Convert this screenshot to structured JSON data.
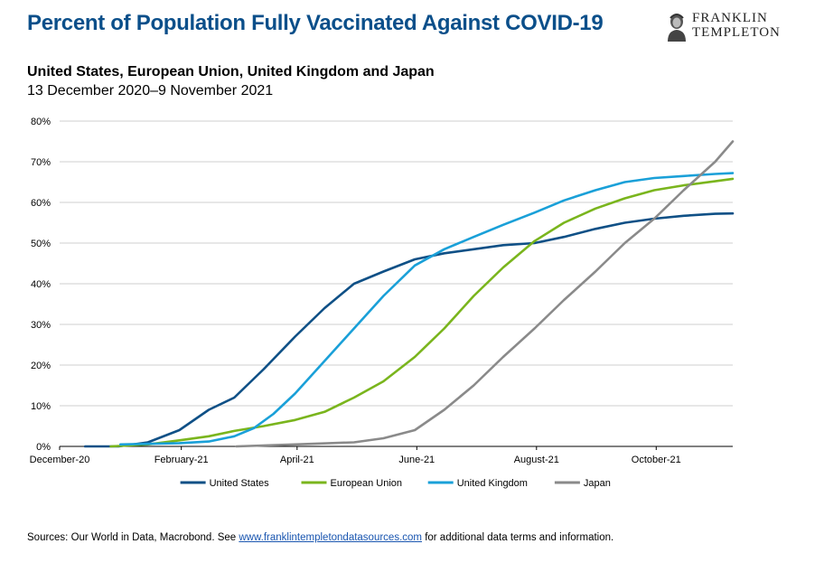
{
  "header": {
    "title": "Percent of Population Fully Vaccinated Against COVID-19",
    "subtitle": "United States, European Union, United Kingdom and Japan",
    "date_range": "13 December 2020–9 November 2021"
  },
  "logo": {
    "line1": "FRANKLIN",
    "line2": "TEMPLETON",
    "icon": "franklin-portrait-icon"
  },
  "footer": {
    "prefix": "Sources: Our World in Data, Macrobond. See ",
    "link": "www.franklintempletondatasources.com",
    "suffix": " for additional data terms and information."
  },
  "chart_data": {
    "type": "line",
    "x_unit": "date",
    "xlim": [
      "2020-12-01",
      "2021-11-09"
    ],
    "ylim": [
      0,
      80
    ],
    "y_ticks": [
      "0%",
      "10%",
      "20%",
      "30%",
      "40%",
      "50%",
      "60%",
      "70%",
      "80%"
    ],
    "x_ticks": [
      {
        "date": "2020-12-01",
        "label": "December-20"
      },
      {
        "date": "2021-02-01",
        "label": "February-21"
      },
      {
        "date": "2021-04-01",
        "label": "April-21"
      },
      {
        "date": "2021-06-01",
        "label": "June-21"
      },
      {
        "date": "2021-08-01",
        "label": "August-21"
      },
      {
        "date": "2021-10-01",
        "label": "October-21"
      }
    ],
    "grid": true,
    "legend_position": "bottom",
    "series": [
      {
        "name": "United States",
        "color": "#0f5086",
        "points": [
          [
            "2020-12-14",
            0
          ],
          [
            "2020-12-31",
            0
          ],
          [
            "2021-01-15",
            1
          ],
          [
            "2021-01-31",
            4
          ],
          [
            "2021-02-15",
            9
          ],
          [
            "2021-02-28",
            12
          ],
          [
            "2021-03-15",
            19
          ],
          [
            "2021-03-31",
            27
          ],
          [
            "2021-04-15",
            34
          ],
          [
            "2021-04-30",
            40
          ],
          [
            "2021-05-15",
            43
          ],
          [
            "2021-05-31",
            46
          ],
          [
            "2021-06-15",
            47.5
          ],
          [
            "2021-06-30",
            48.5
          ],
          [
            "2021-07-15",
            49.5
          ],
          [
            "2021-07-31",
            50
          ],
          [
            "2021-08-15",
            51.5
          ],
          [
            "2021-08-31",
            53.5
          ],
          [
            "2021-09-15",
            55
          ],
          [
            "2021-09-30",
            56
          ],
          [
            "2021-10-15",
            56.7
          ],
          [
            "2021-10-31",
            57.2
          ],
          [
            "2021-11-09",
            57.3
          ]
        ]
      },
      {
        "name": "European Union",
        "color": "#7ab51d",
        "points": [
          [
            "2020-12-27",
            0
          ],
          [
            "2021-01-15",
            0.5
          ],
          [
            "2021-01-31",
            1.5
          ],
          [
            "2021-02-15",
            2.5
          ],
          [
            "2021-02-28",
            3.8
          ],
          [
            "2021-03-15",
            5
          ],
          [
            "2021-03-31",
            6.5
          ],
          [
            "2021-04-15",
            8.5
          ],
          [
            "2021-04-30",
            12
          ],
          [
            "2021-05-15",
            16
          ],
          [
            "2021-05-31",
            22
          ],
          [
            "2021-06-15",
            29
          ],
          [
            "2021-06-30",
            37
          ],
          [
            "2021-07-15",
            44
          ],
          [
            "2021-07-31",
            50.5
          ],
          [
            "2021-08-15",
            55
          ],
          [
            "2021-08-31",
            58.5
          ],
          [
            "2021-09-15",
            61
          ],
          [
            "2021-09-30",
            63
          ],
          [
            "2021-10-15",
            64.2
          ],
          [
            "2021-10-31",
            65.2
          ],
          [
            "2021-11-09",
            65.8
          ]
        ]
      },
      {
        "name": "United Kingdom",
        "color": "#1aa0d8",
        "points": [
          [
            "2021-01-01",
            0.5
          ],
          [
            "2021-01-31",
            0.8
          ],
          [
            "2021-02-15",
            1.2
          ],
          [
            "2021-02-28",
            2.5
          ],
          [
            "2021-03-10",
            4.5
          ],
          [
            "2021-03-20",
            8
          ],
          [
            "2021-03-31",
            13
          ],
          [
            "2021-04-15",
            21
          ],
          [
            "2021-04-30",
            29
          ],
          [
            "2021-05-15",
            37
          ],
          [
            "2021-05-31",
            44.5
          ],
          [
            "2021-06-15",
            48.5
          ],
          [
            "2021-06-30",
            51.5
          ],
          [
            "2021-07-15",
            54.5
          ],
          [
            "2021-07-31",
            57.5
          ],
          [
            "2021-08-15",
            60.5
          ],
          [
            "2021-08-31",
            63
          ],
          [
            "2021-09-15",
            65
          ],
          [
            "2021-09-30",
            66
          ],
          [
            "2021-10-15",
            66.5
          ],
          [
            "2021-10-31",
            67
          ],
          [
            "2021-11-09",
            67.2
          ]
        ]
      },
      {
        "name": "Japan",
        "color": "#8a8a8a",
        "points": [
          [
            "2021-03-01",
            0
          ],
          [
            "2021-03-31",
            0.5
          ],
          [
            "2021-04-30",
            1
          ],
          [
            "2021-05-15",
            2
          ],
          [
            "2021-05-31",
            4
          ],
          [
            "2021-06-15",
            9
          ],
          [
            "2021-06-30",
            15
          ],
          [
            "2021-07-15",
            22
          ],
          [
            "2021-07-31",
            29
          ],
          [
            "2021-08-15",
            36
          ],
          [
            "2021-08-31",
            43
          ],
          [
            "2021-09-15",
            50
          ],
          [
            "2021-09-30",
            56
          ],
          [
            "2021-10-15",
            63
          ],
          [
            "2021-10-31",
            70
          ],
          [
            "2021-11-09",
            75
          ]
        ]
      }
    ]
  }
}
